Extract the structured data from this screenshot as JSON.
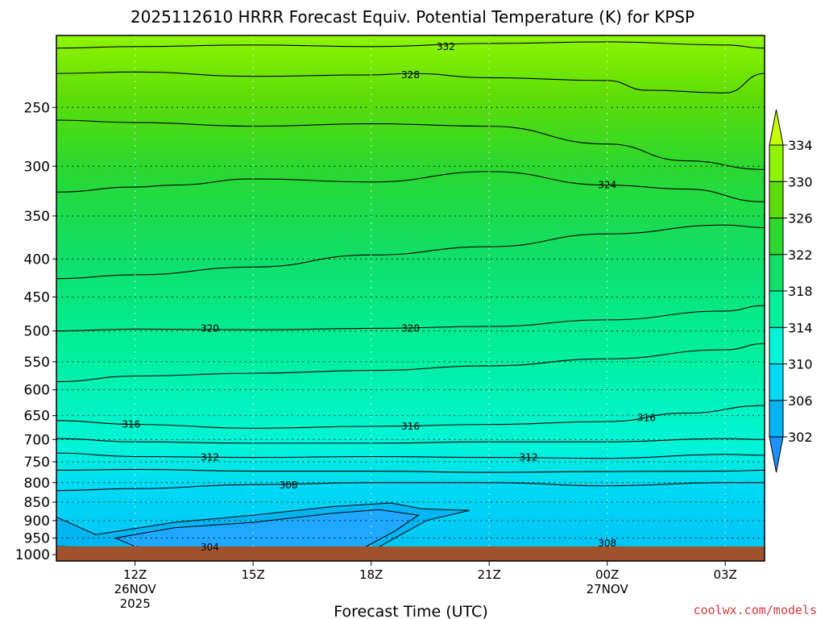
{
  "chart_data": {
    "type": "heatmap",
    "title": "2025112610 HRRR Forecast Equiv. Potential Temperature (K) for KPSP",
    "xlabel": "Forecast Time (UTC)",
    "ylabel": "",
    "x_ticks": [
      {
        "hour": 12,
        "label": "12Z",
        "sub1": "26NOV",
        "sub2": "2025"
      },
      {
        "hour": 15,
        "label": "15Z",
        "sub1": "",
        "sub2": ""
      },
      {
        "hour": 18,
        "label": "18Z",
        "sub1": "",
        "sub2": ""
      },
      {
        "hour": 21,
        "label": "21Z",
        "sub1": "",
        "sub2": ""
      },
      {
        "hour": 24,
        "label": "00Z",
        "sub1": "27NOV",
        "sub2": ""
      },
      {
        "hour": 27,
        "label": "03Z",
        "sub1": "",
        "sub2": ""
      }
    ],
    "xlim": [
      10,
      28
    ],
    "y_ticks": [
      "250",
      "300",
      "350",
      "400",
      "450",
      "500",
      "550",
      "600",
      "650",
      "700",
      "750",
      "800",
      "850",
      "900",
      "950",
      "1000"
    ],
    "ylim": [
      200,
      1020
    ],
    "colorbar": {
      "labels": [
        "302",
        "306",
        "310",
        "314",
        "318",
        "322",
        "326",
        "330",
        "334"
      ],
      "colors": [
        "#1e90ff",
        "#00b5f2",
        "#00d9f5",
        "#00f5d8",
        "#00ef9c",
        "#10df68",
        "#2bd82f",
        "#5ddc08",
        "#8ef500",
        "#c6ff00"
      ]
    },
    "isotherms": [
      {
        "value": 332,
        "points": [
          [
            10,
            208
          ],
          [
            12,
            207
          ],
          [
            15,
            206
          ],
          [
            18,
            207
          ],
          [
            21,
            205
          ],
          [
            24,
            204
          ],
          [
            27,
            206
          ],
          [
            28,
            208
          ]
        ]
      },
      {
        "value": 328,
        "points": [
          [
            10,
            225
          ],
          [
            12,
            224
          ],
          [
            15,
            227
          ],
          [
            18,
            226
          ],
          [
            19,
            225
          ],
          [
            21,
            228
          ],
          [
            24,
            230
          ],
          [
            25,
            237
          ],
          [
            27,
            239
          ],
          [
            28,
            225
          ]
        ]
      },
      {
        "value": 328,
        "points": [
          [
            10,
            260
          ],
          [
            12,
            262
          ],
          [
            15,
            265
          ],
          [
            18,
            263
          ],
          [
            21,
            265
          ],
          [
            24,
            280
          ],
          [
            26,
            295
          ],
          [
            28,
            303
          ]
        ]
      },
      {
        "value": 324,
        "points": [
          [
            10,
            325
          ],
          [
            12,
            320
          ],
          [
            13,
            318
          ],
          [
            15,
            312
          ],
          [
            18,
            315
          ],
          [
            21,
            305
          ],
          [
            24,
            318
          ],
          [
            26,
            322
          ],
          [
            28,
            335
          ]
        ]
      },
      {
        "value": 324,
        "points": [
          [
            10,
            425
          ],
          [
            12,
            420
          ],
          [
            15,
            410
          ],
          [
            18,
            395
          ],
          [
            21,
            385
          ],
          [
            24,
            370
          ],
          [
            27,
            360
          ],
          [
            28,
            363
          ]
        ]
      },
      {
        "value": 320,
        "points": [
          [
            10,
            500
          ],
          [
            12,
            497
          ],
          [
            15,
            498
          ],
          [
            18,
            496
          ],
          [
            21,
            493
          ],
          [
            24,
            483
          ],
          [
            27,
            470
          ],
          [
            28,
            462
          ]
        ]
      },
      {
        "value": 320,
        "points": [
          [
            10,
            585
          ],
          [
            12,
            575
          ],
          [
            15,
            570
          ],
          [
            18,
            565
          ],
          [
            21,
            557
          ],
          [
            24,
            545
          ],
          [
            27,
            530
          ],
          [
            28,
            520
          ]
        ]
      },
      {
        "value": 316,
        "points": [
          [
            10,
            660
          ],
          [
            12,
            668
          ],
          [
            15,
            676
          ],
          [
            18,
            672
          ],
          [
            21,
            668
          ],
          [
            24,
            662
          ],
          [
            26,
            645
          ],
          [
            28,
            630
          ]
        ]
      },
      {
        "value": 316,
        "points": [
          [
            10,
            698
          ],
          [
            12,
            705
          ],
          [
            15,
            708
          ],
          [
            18,
            708
          ],
          [
            21,
            705
          ],
          [
            24,
            705
          ],
          [
            27,
            698
          ],
          [
            28,
            700
          ]
        ]
      },
      {
        "value": 312,
        "points": [
          [
            10,
            730
          ],
          [
            12,
            738
          ],
          [
            15,
            740
          ],
          [
            18,
            738
          ],
          [
            21,
            740
          ],
          [
            24,
            742
          ],
          [
            27,
            733
          ],
          [
            28,
            735
          ]
        ]
      },
      {
        "value": 312,
        "points": [
          [
            10,
            770
          ],
          [
            12,
            768
          ],
          [
            15,
            772
          ],
          [
            18,
            772
          ],
          [
            21,
            775
          ],
          [
            24,
            773
          ],
          [
            27,
            772
          ],
          [
            28,
            770
          ]
        ]
      },
      {
        "value": 308,
        "points": [
          [
            10,
            820
          ],
          [
            12,
            815
          ],
          [
            15,
            805
          ],
          [
            18,
            800
          ],
          [
            21,
            800
          ],
          [
            24,
            808
          ],
          [
            27,
            800
          ],
          [
            28,
            800
          ]
        ]
      }
    ],
    "contour_labels": [
      {
        "text": "332",
        "x": 19.9,
        "p": 207
      },
      {
        "text": "328",
        "x": 19.0,
        "p": 226
      },
      {
        "text": "324",
        "x": 24.0,
        "p": 318
      },
      {
        "text": "320",
        "x": 13.9,
        "p": 496
      },
      {
        "text": "320",
        "x": 19.0,
        "p": 496
      },
      {
        "text": "316",
        "x": 11.9,
        "p": 668
      },
      {
        "text": "316",
        "x": 19.0,
        "p": 672
      },
      {
        "text": "316",
        "x": 25.0,
        "p": 655
      },
      {
        "text": "312",
        "x": 13.9,
        "p": 740
      },
      {
        "text": "312",
        "x": 22.0,
        "p": 740
      },
      {
        "text": "308",
        "x": 15.9,
        "p": 806
      },
      {
        "text": "308",
        "x": 24.0,
        "p": 965
      },
      {
        "text": "304",
        "x": 13.9,
        "p": 977
      }
    ],
    "grid": true
  },
  "credit": "coolwx.com/models"
}
